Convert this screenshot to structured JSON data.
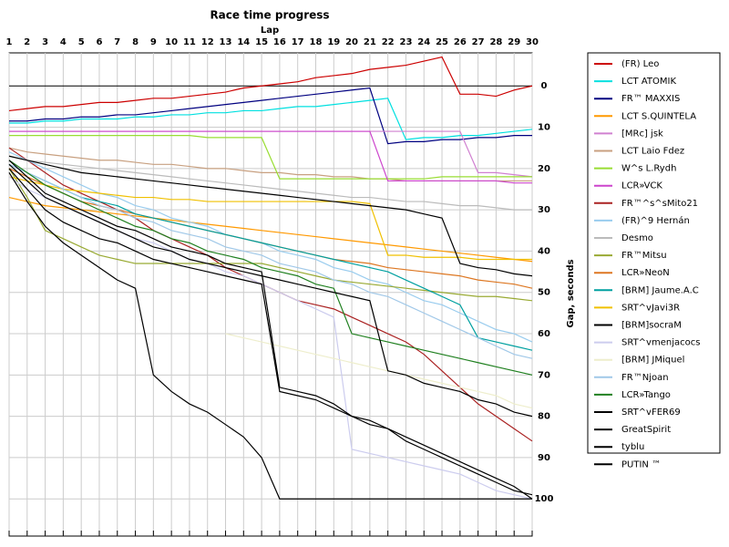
{
  "chart_data": {
    "type": "line",
    "title": "Race time progress",
    "xlabel": "Lap",
    "ylabel": "Gap, seconds",
    "x": [
      1,
      2,
      3,
      4,
      5,
      6,
      7,
      8,
      9,
      10,
      11,
      12,
      13,
      14,
      15,
      16,
      17,
      18,
      19,
      20,
      21,
      22,
      23,
      24,
      25,
      26,
      27,
      28,
      29,
      30
    ],
    "xlim": [
      1,
      30
    ],
    "xticks": [
      1,
      2,
      3,
      4,
      5,
      6,
      7,
      8,
      9,
      10,
      11,
      12,
      13,
      14,
      15,
      16,
      17,
      18,
      19,
      20,
      21,
      22,
      23,
      24,
      25,
      26,
      27,
      28,
      29,
      30
    ],
    "ylim": [
      109,
      -8
    ],
    "yticks": [
      0,
      10,
      20,
      30,
      40,
      50,
      60,
      70,
      80,
      90,
      100
    ],
    "grid": true,
    "legend": "right",
    "series": [
      {
        "name": "(FR) Leo",
        "color": "#cc0000",
        "values": [
          6,
          5.5,
          5,
          5,
          4.5,
          4,
          4,
          3.5,
          3,
          3,
          2.5,
          2,
          1.5,
          0.5,
          0,
          -0.5,
          -1,
          -2,
          -2.5,
          -3,
          -4,
          -4.5,
          -5,
          -6,
          -7,
          2,
          2,
          2.5,
          1,
          0
        ]
      },
      {
        "name": "LCT ATOMIK",
        "color": "#00e0e0",
        "values": [
          9,
          9,
          8.5,
          8.5,
          8,
          8,
          8,
          7.5,
          7.5,
          7,
          7,
          6.5,
          6.5,
          6,
          6,
          5.5,
          5,
          5,
          4.5,
          4,
          3.5,
          3,
          13,
          12.5,
          12.5,
          12,
          12,
          11.5,
          11,
          10.5
        ]
      },
      {
        "name": "FR™ MAXXIS",
        "color": "#000080",
        "values": [
          8.5,
          8.5,
          8,
          8,
          7.5,
          7.5,
          7,
          7,
          6.5,
          6,
          5.5,
          5,
          4.5,
          4,
          3.5,
          3,
          2.5,
          2,
          1.5,
          1,
          0.5,
          14,
          13.5,
          13.5,
          13,
          13,
          12.5,
          12.5,
          12,
          12
        ]
      },
      {
        "name": "LCT S.QUINTELA",
        "color": "#ff9900",
        "values": [
          27,
          28,
          29,
          29.5,
          30,
          30.5,
          31,
          31.5,
          32,
          32.5,
          33,
          33.5,
          34,
          34.5,
          35,
          35.5,
          36,
          36.5,
          37,
          37.5,
          38,
          38.5,
          39,
          39.5,
          40,
          40.5,
          41,
          41.5,
          42,
          42.5
        ]
      },
      {
        "name": "[MRc] jsk",
        "color": "#d080d0",
        "values": [
          11,
          11,
          11,
          11,
          11,
          11,
          11,
          11,
          11,
          11,
          11,
          11,
          11,
          11,
          11,
          11,
          11,
          11,
          11,
          11,
          11,
          11,
          11,
          11,
          11,
          11,
          21,
          21,
          21.5,
          22
        ]
      },
      {
        "name": "LCT Laio Fdez",
        "color": "#c8a080",
        "values": [
          15,
          16,
          16.5,
          17,
          17.5,
          18,
          18,
          18.5,
          19,
          19,
          19.5,
          20,
          20,
          20.5,
          21,
          21,
          21.5,
          21.5,
          22,
          22,
          22.5,
          22.5,
          23,
          23,
          23,
          23,
          23,
          23,
          23,
          23
        ]
      },
      {
        "name": "W^s L.Rydh",
        "color": "#99dd33",
        "values": [
          12,
          12,
          12,
          12,
          12,
          12,
          12,
          12,
          12,
          12,
          12,
          12.5,
          12.5,
          12.5,
          12.5,
          22.5,
          22.5,
          22.5,
          22.5,
          22.5,
          22.5,
          22.5,
          22.5,
          22.5,
          22,
          22,
          22,
          22,
          22,
          22
        ]
      },
      {
        "name": "LCR»VCK",
        "color": "#cc44cc",
        "values": [
          11,
          11,
          11,
          11,
          11,
          11,
          11,
          11,
          11,
          11,
          11,
          11,
          11,
          11,
          11,
          11,
          11,
          11,
          11,
          11,
          11,
          23,
          23,
          23,
          23,
          23,
          23,
          23,
          23.5,
          23.5
        ]
      },
      {
        "name": "FR™^s^sMito21",
        "color": "#aa2222",
        "values": [
          15,
          18,
          21,
          24,
          26,
          28,
          30,
          32,
          35,
          37,
          39,
          41,
          44,
          46,
          48,
          50,
          52,
          53,
          54,
          56,
          58,
          60,
          62,
          65,
          69,
          73,
          77,
          80,
          83,
          86
        ]
      },
      {
        "name": "(FR)^9 Hernán",
        "color": "#99ccee",
        "values": [
          16,
          18,
          20,
          22,
          24,
          26,
          27,
          29,
          30,
          32,
          33,
          34,
          36,
          37,
          38,
          40,
          41,
          42,
          44,
          45,
          47,
          48,
          50,
          52,
          53,
          55,
          57,
          59,
          60,
          62
        ]
      },
      {
        "name": "Desmo",
        "color": "#bbbbbb",
        "values": [
          17,
          18,
          18.5,
          19,
          19.5,
          20,
          20.5,
          21,
          21.5,
          22,
          22.5,
          23,
          23.5,
          24,
          24.5,
          25,
          25.5,
          26,
          26.5,
          27,
          27,
          27.5,
          28,
          28,
          28.5,
          29,
          29,
          29.5,
          30,
          30
        ]
      },
      {
        "name": "FR™Mitsu",
        "color": "#99aa33",
        "values": [
          20,
          27,
          35,
          37,
          39,
          41,
          42,
          43,
          43,
          43,
          43,
          43,
          43,
          43,
          43,
          44,
          45,
          46,
          47,
          47.5,
          48,
          48.5,
          49,
          49.5,
          50,
          50.5,
          51,
          51,
          51.5,
          52
        ]
      },
      {
        "name": "LCR»NeoN",
        "color": "#dd7722",
        "values": [
          20,
          22,
          24,
          26,
          28,
          29,
          30,
          31,
          32,
          33,
          34,
          35,
          36,
          37,
          38,
          39,
          40,
          41,
          42,
          42.5,
          43,
          44,
          44.5,
          45,
          45.5,
          46,
          47,
          47.5,
          48,
          49
        ]
      },
      {
        "name": "[BRM] Jaume.A.C",
        "color": "#00a0a0",
        "values": [
          19,
          21,
          23,
          25,
          27,
          28,
          29,
          31,
          32,
          33,
          34,
          35,
          36,
          37,
          38,
          39,
          40,
          41,
          42,
          43,
          44,
          45,
          47,
          49,
          51,
          53,
          61,
          62,
          63,
          64
        ]
      },
      {
        "name": "SRT^vJavi3R",
        "color": "#f0c000",
        "values": [
          22,
          23,
          24,
          25,
          25.5,
          26,
          26.5,
          27,
          27,
          27.5,
          27.5,
          28,
          28,
          28,
          28,
          28,
          28,
          28,
          28,
          28,
          28.5,
          41,
          41,
          41.5,
          41.5,
          41.5,
          42,
          42,
          42,
          42
        ]
      },
      {
        "name": "[BRM]socraM",
        "color": "#000000",
        "values": [
          17,
          18,
          19,
          20,
          21,
          21.5,
          22,
          22.5,
          23,
          23.5,
          24,
          24.5,
          25,
          25.5,
          26,
          26.5,
          27,
          27.5,
          28,
          28.5,
          29,
          29.5,
          30,
          31,
          32,
          43,
          44,
          44.5,
          45.5,
          46
        ]
      },
      {
        "name": "SRT^vmenjacocs",
        "color": "#ccccee",
        "values": [
          22,
          25,
          27,
          29,
          31,
          33,
          35,
          37,
          38,
          40,
          42,
          43,
          45,
          46,
          48,
          50,
          52,
          54,
          56,
          88,
          89,
          90,
          91,
          92,
          93,
          94,
          96,
          98,
          99,
          100
        ]
      },
      {
        "name": "[BRM] JMiquel",
        "color": "#eeeecc",
        "values": [
          null,
          null,
          null,
          null,
          null,
          null,
          null,
          null,
          null,
          null,
          null,
          null,
          60,
          61,
          62,
          63,
          64,
          65,
          66,
          67,
          68,
          69,
          70,
          71,
          72,
          73,
          74,
          75,
          77,
          78
        ]
      },
      {
        "name": "FR™Njoan",
        "color": "#a0c8e8",
        "values": [
          19,
          21,
          23,
          25,
          27,
          29,
          30,
          32,
          33,
          35,
          36,
          37,
          39,
          40,
          41,
          43,
          44,
          45,
          47,
          48,
          50,
          51,
          53,
          55,
          57,
          59,
          61,
          63,
          65,
          66
        ]
      },
      {
        "name": "LCR»Tango",
        "color": "#208020",
        "values": [
          18,
          21,
          24,
          26,
          28,
          30,
          32,
          34,
          35,
          37,
          38,
          40,
          41,
          42,
          44,
          45,
          46,
          48,
          49,
          60,
          61,
          62,
          63,
          64,
          65,
          66,
          67,
          68,
          69,
          70
        ]
      },
      {
        "name": "SRT^vFER69",
        "color": "#000000",
        "values": [
          18,
          22,
          26,
          28,
          30,
          32,
          34,
          35,
          37,
          39,
          40,
          41,
          43,
          44,
          45,
          73,
          74,
          75,
          77,
          80,
          81,
          83,
          86,
          88,
          90,
          92,
          94,
          96,
          98,
          99
        ]
      },
      {
        "name": "GreatSpirit",
        "color": "#000000",
        "values": [
          19,
          23,
          27,
          29,
          31,
          33,
          35,
          37,
          39,
          40,
          42,
          43,
          44,
          45,
          46,
          47,
          48,
          49,
          50,
          51,
          52,
          69,
          70,
          72,
          73,
          74,
          76,
          77,
          79,
          80
        ]
      },
      {
        "name": "tyblu",
        "color": "#000000",
        "values": [
          20,
          25,
          30,
          33,
          35,
          37,
          38,
          40,
          42,
          43,
          44,
          45,
          46,
          47,
          48,
          74,
          75,
          76,
          78,
          80,
          82,
          83,
          85,
          87,
          89,
          91,
          93,
          95,
          97,
          100
        ]
      },
      {
        "name": "PUTIN ™",
        "color": "#000000",
        "values": [
          21,
          28,
          34,
          38,
          41,
          44,
          47,
          49,
          70,
          74,
          77,
          79,
          82,
          85,
          90,
          100,
          100,
          100,
          100,
          100,
          100,
          100,
          100,
          100,
          100,
          100,
          100,
          100,
          100,
          100
        ]
      }
    ]
  }
}
